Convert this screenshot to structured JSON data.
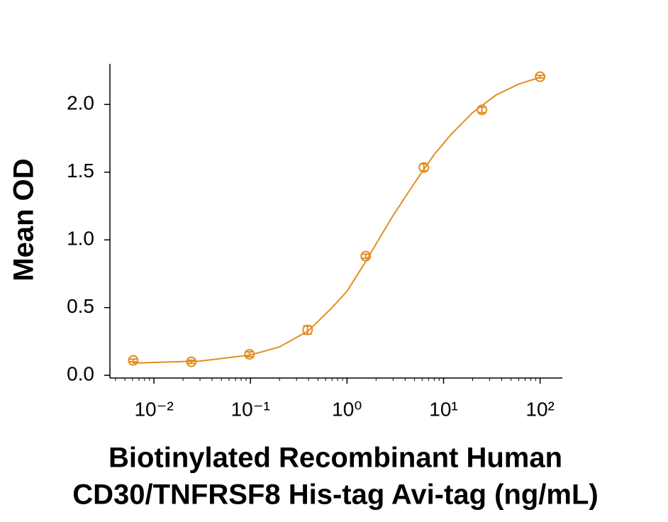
{
  "chart_data": {
    "type": "scatter",
    "x_label": [
      "Biotinylated Recombinant Human",
      "CD30/TNFRSF8 His-tag Avi-tag (ng/mL)"
    ],
    "y_label": "Mean OD",
    "x_log": true,
    "xlim": [
      0.0035,
      170
    ],
    "ylim": [
      -0.02,
      2.3
    ],
    "xticks": [
      {
        "value": 0.01,
        "label": "10⁻²"
      },
      {
        "value": 0.1,
        "label": "10⁻¹"
      },
      {
        "value": 1,
        "label": "10⁰"
      },
      {
        "value": 10,
        "label": "10¹"
      },
      {
        "value": 100,
        "label": "10²"
      }
    ],
    "yticks": [
      {
        "value": 0,
        "label": "0.0"
      },
      {
        "value": 0.5,
        "label": "0.5"
      },
      {
        "value": 1,
        "label": "1.0"
      },
      {
        "value": 1.5,
        "label": "1.5"
      },
      {
        "value": 2,
        "label": "2.0"
      }
    ],
    "minor_ticks": true,
    "color": "#e38d1f",
    "series": [
      {
        "x": [
          0.0061,
          0.0244,
          0.0977,
          0.39,
          1.5625,
          6.25,
          25,
          100
        ],
        "values": [
          0.11,
          0.1,
          0.155,
          0.335,
          0.88,
          1.535,
          1.96,
          2.205
        ],
        "errors": [
          0.01,
          0.012,
          0.018,
          0.03,
          0.015,
          0.025,
          0.02,
          0.01
        ]
      },
      {
        "type": "line",
        "x": [
          0.006,
          0.01,
          0.03,
          0.1,
          0.2,
          0.4,
          0.7,
          1,
          1.5,
          2,
          3,
          5,
          8,
          12,
          20,
          35,
          60,
          100
        ],
        "values": [
          0.09,
          0.095,
          0.105,
          0.15,
          0.21,
          0.33,
          0.5,
          0.62,
          0.82,
          0.97,
          1.18,
          1.42,
          1.63,
          1.78,
          1.94,
          2.07,
          2.15,
          2.2
        ]
      }
    ]
  }
}
